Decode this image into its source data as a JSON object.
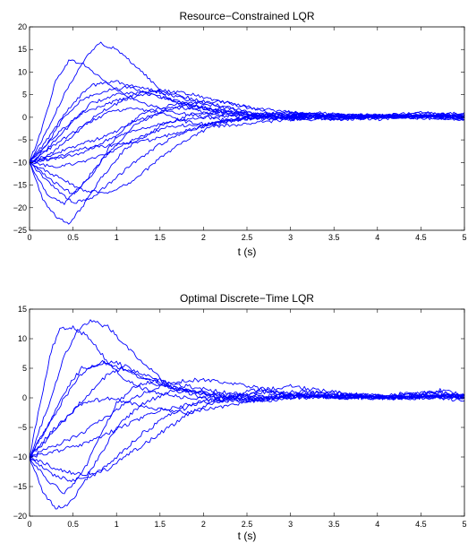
{
  "colors": {
    "series": "#0000ff",
    "axes": "#000000",
    "background": "#ffffff"
  },
  "chart_data": [
    {
      "type": "line",
      "title": "Resource−Constrained LQR",
      "xlabel": "t (s)",
      "ylabel": "",
      "xlim": [
        0,
        5
      ],
      "ylim": [
        -25,
        20
      ],
      "xticks": [
        0,
        0.5,
        1,
        1.5,
        2,
        2.5,
        3,
        3.5,
        4,
        4.5,
        5
      ],
      "xtick_labels": [
        "0",
        "0.5",
        "1",
        "1.5",
        "2",
        "2.5",
        "3",
        "3.5",
        "4",
        "4.5",
        "5"
      ],
      "yticks": [
        -25,
        -20,
        -15,
        -10,
        -5,
        0,
        5,
        10,
        15,
        20
      ],
      "ytick_labels": [
        "−25",
        "−20",
        "−15",
        "−10",
        "−5",
        "0",
        "5",
        "10",
        "15",
        "20"
      ],
      "grid": false,
      "series": [
        {
          "x": [
            0,
            0.15,
            0.3,
            0.45,
            0.6,
            0.8,
            1.0,
            1.3,
            1.7,
            2.2,
            2.8,
            3.5,
            4.2,
            5
          ],
          "y": [
            -10,
            -2,
            8,
            12.5,
            12,
            9,
            6,
            3,
            1,
            -0.5,
            0.5,
            0,
            0.5,
            0
          ]
        },
        {
          "x": [
            0,
            0.2,
            0.4,
            0.6,
            0.8,
            1.0,
            1.3,
            1.6,
            2.0,
            2.5,
            3.0,
            3.5,
            4.2,
            5
          ],
          "y": [
            -10,
            -3,
            5,
            12,
            16.5,
            15,
            10,
            4,
            1,
            0,
            -0.5,
            0.5,
            0,
            0.5
          ]
        },
        {
          "x": [
            0,
            0.2,
            0.45,
            0.7,
            1.0,
            1.4,
            1.8,
            2.2,
            2.7,
            3.2,
            3.8,
            4.5,
            5
          ],
          "y": [
            -10,
            -5,
            2,
            7,
            8,
            5,
            3,
            1,
            -0.5,
            0.5,
            0,
            1,
            0
          ]
        },
        {
          "x": [
            0,
            0.2,
            0.45,
            0.7,
            1.0,
            1.3,
            1.6,
            2.0,
            2.5,
            3.0,
            3.6,
            4.3,
            5
          ],
          "y": [
            -10,
            -7,
            -2,
            3,
            5,
            5.5,
            4,
            2,
            0.5,
            -0.5,
            0.5,
            0,
            -0.5
          ]
        },
        {
          "x": [
            0,
            0.25,
            0.5,
            0.8,
            1.1,
            1.5,
            1.9,
            2.3,
            2.8,
            3.4,
            4.0,
            4.6,
            5
          ],
          "y": [
            -10,
            -8,
            -4,
            1,
            4,
            6,
            4,
            2,
            0,
            0.5,
            -0.5,
            0.5,
            0
          ]
        },
        {
          "x": [
            0,
            0.25,
            0.5,
            0.75,
            1.0,
            1.3,
            1.7,
            2.1,
            2.6,
            3.2,
            3.8,
            4.5,
            5
          ],
          "y": [
            -10,
            -14,
            -17,
            -12,
            -4,
            1,
            3,
            2,
            0.5,
            -0.5,
            0,
            1,
            0.5
          ]
        },
        {
          "x": [
            0,
            0.2,
            0.4,
            0.6,
            0.9,
            1.2,
            1.6,
            2.0,
            2.5,
            3.0,
            3.6,
            4.2,
            5
          ],
          "y": [
            -10,
            -17,
            -19,
            -15,
            -8,
            -2,
            2,
            2,
            0.5,
            0,
            -0.5,
            0.5,
            0
          ]
        },
        {
          "x": [
            0,
            0.15,
            0.3,
            0.45,
            0.6,
            0.8,
            1.1,
            1.5,
            1.9,
            2.4,
            3.0,
            3.7,
            4.4,
            5
          ],
          "y": [
            -10,
            -18,
            -22,
            -23.5,
            -20,
            -14,
            -7,
            -2,
            1,
            1,
            0,
            -0.5,
            0.5,
            0
          ]
        },
        {
          "x": [
            0,
            0.25,
            0.5,
            0.7,
            0.9,
            1.2,
            1.5,
            1.8,
            2.2,
            2.7,
            3.3,
            4.0,
            4.6,
            5
          ],
          "y": [
            -10,
            -15,
            -19,
            -18,
            -15,
            -10,
            -6,
            -3,
            -1,
            0,
            1,
            0,
            0.5,
            -0.5
          ]
        },
        {
          "x": [
            0,
            0.3,
            0.6,
            0.9,
            1.2,
            1.5,
            1.8,
            2.1,
            2.5,
            3.0,
            3.6,
            4.2,
            5
          ],
          "y": [
            -10,
            -13,
            -16,
            -17,
            -14,
            -9,
            -5,
            -2,
            0,
            1,
            0,
            0.5,
            0
          ]
        },
        {
          "x": [
            0,
            0.3,
            0.6,
            0.9,
            1.2,
            1.6,
            2.0,
            2.4,
            2.8,
            3.3,
            3.9,
            4.5,
            5
          ],
          "y": [
            -10,
            -11,
            -10,
            -8,
            -5,
            -2,
            -1.5,
            -0.5,
            0.5,
            0,
            0.5,
            0,
            0.5
          ]
        },
        {
          "x": [
            0,
            0.3,
            0.6,
            1.0,
            1.4,
            1.8,
            2.2,
            2.7,
            3.2,
            3.7,
            4.3,
            5
          ],
          "y": [
            -10,
            -9,
            -7,
            -6,
            -5,
            -3,
            -1,
            0,
            0.5,
            0,
            0,
            -0.5
          ]
        },
        {
          "x": [
            0,
            0.3,
            0.6,
            0.9,
            1.2,
            1.5,
            1.8,
            2.2,
            2.7,
            3.3,
            3.9,
            4.5,
            5
          ],
          "y": [
            -10,
            -6,
            -2,
            1,
            2,
            1,
            -1,
            -2,
            -1,
            0,
            0.5,
            0,
            0
          ]
        },
        {
          "x": [
            0,
            0.2,
            0.4,
            0.6,
            0.9,
            1.2,
            1.6,
            2.0,
            2.5,
            3.0,
            3.6,
            4.2,
            5
          ],
          "y": [
            -10,
            -6,
            0,
            4,
            6,
            7,
            5,
            3,
            1,
            0,
            0.5,
            0,
            0.5
          ]
        },
        {
          "x": [
            0,
            0.3,
            0.6,
            0.9,
            1.2,
            1.5,
            1.9,
            2.3,
            2.8,
            3.4,
            4.0,
            4.6,
            5
          ],
          "y": [
            -10,
            -4,
            1,
            3,
            5,
            6,
            5,
            3,
            1,
            0,
            0,
            0.5,
            0
          ]
        },
        {
          "x": [
            0,
            0.3,
            0.6,
            0.9,
            1.2,
            1.5,
            1.8,
            2.2,
            2.6,
            3.1,
            3.7,
            4.3,
            5
          ],
          "y": [
            -10,
            -8,
            -6,
            -4,
            -1,
            1,
            3,
            3.5,
            2,
            1,
            0,
            0.5,
            0
          ]
        },
        {
          "x": [
            0,
            0.3,
            0.6,
            0.9,
            1.2,
            1.6,
            2.0,
            2.4,
            2.9,
            3.5,
            4.1,
            4.7,
            5
          ],
          "y": [
            -10,
            -9,
            -8,
            -5,
            -3,
            -1,
            0,
            0.5,
            1,
            0.5,
            0,
            0.5,
            1
          ]
        }
      ]
    },
    {
      "type": "line",
      "title": "Optimal Discrete−Time LQR",
      "xlabel": "t (s)",
      "ylabel": "",
      "xlim": [
        0,
        5
      ],
      "ylim": [
        -20,
        15
      ],
      "xticks": [
        0,
        0.5,
        1,
        1.5,
        2,
        2.5,
        3,
        3.5,
        4,
        4.5,
        5
      ],
      "xtick_labels": [
        "0",
        "0.5",
        "1",
        "1.5",
        "2",
        "2.5",
        "3",
        "3.5",
        "4",
        "4.5",
        "5"
      ],
      "yticks": [
        -20,
        -15,
        -10,
        -5,
        0,
        5,
        10,
        15
      ],
      "ytick_labels": [
        "−20",
        "−15",
        "−10",
        "−5",
        "0",
        "5",
        "10",
        "15"
      ],
      "grid": false,
      "series": [
        {
          "x": [
            0,
            0.12,
            0.25,
            0.35,
            0.5,
            0.7,
            0.9,
            1.1,
            1.4,
            1.8,
            2.2,
            2.8,
            3.5,
            4.2,
            5
          ],
          "y": [
            -10,
            -1,
            8,
            11.5,
            12,
            10,
            6,
            3,
            1,
            0,
            -0.5,
            0,
            0.5,
            0,
            0.5
          ]
        },
        {
          "x": [
            0,
            0.2,
            0.4,
            0.55,
            0.7,
            0.9,
            1.1,
            1.3,
            1.6,
            2.0,
            2.5,
            3.0,
            3.6,
            4.2,
            5
          ],
          "y": [
            -10,
            -2,
            7,
            11.5,
            13,
            12,
            9,
            6,
            2,
            0,
            -0.5,
            0.5,
            0,
            0.5,
            0
          ]
        },
        {
          "x": [
            0,
            0.2,
            0.4,
            0.6,
            0.8,
            1.0,
            1.3,
            1.6,
            2.0,
            2.5,
            3.0,
            3.5,
            4.1,
            4.7,
            5
          ],
          "y": [
            -10,
            -5,
            0,
            4,
            6,
            6,
            4,
            2,
            0.5,
            -0.5,
            0.5,
            0,
            0,
            1,
            0
          ]
        },
        {
          "x": [
            0,
            0.2,
            0.45,
            0.7,
            0.9,
            1.1,
            1.4,
            1.7,
            2.1,
            2.6,
            3.1,
            3.7,
            4.3,
            5
          ],
          "y": [
            -10,
            -7,
            -3,
            1,
            4,
            5,
            3,
            1.5,
            0.5,
            -0.5,
            0.5,
            0,
            0,
            0.5
          ]
        },
        {
          "x": [
            0,
            0.2,
            0.4,
            0.6,
            0.8,
            1.0,
            1.2,
            1.5,
            1.8,
            2.2,
            2.7,
            3.2,
            3.8,
            4.5,
            5
          ],
          "y": [
            -10,
            -14,
            -16,
            -13,
            -7,
            -1,
            2,
            3,
            2,
            1,
            0,
            0.5,
            0,
            0.5,
            -0.5
          ]
        },
        {
          "x": [
            0,
            0.15,
            0.3,
            0.45,
            0.6,
            0.8,
            1.0,
            1.3,
            1.6,
            2.0,
            2.5,
            3.0,
            3.6,
            4.2,
            5
          ],
          "y": [
            -10,
            -16,
            -18.5,
            -18,
            -15,
            -10,
            -5,
            -1,
            1,
            1,
            0,
            0,
            0.5,
            0,
            0
          ]
        },
        {
          "x": [
            0,
            0.25,
            0.5,
            0.75,
            1.0,
            1.3,
            1.6,
            1.9,
            2.2,
            2.6,
            3.1,
            3.6,
            4.2,
            4.8,
            5
          ],
          "y": [
            -10,
            -13,
            -14,
            -13,
            -10,
            -6,
            -3,
            -1,
            0,
            1,
            0.5,
            0,
            0,
            1.5,
            0
          ]
        },
        {
          "x": [
            0,
            0.3,
            0.6,
            0.9,
            1.2,
            1.5,
            1.8,
            2.1,
            2.5,
            3.0,
            3.5,
            4.1,
            4.7,
            5
          ],
          "y": [
            -10,
            -12,
            -13,
            -12,
            -9,
            -6,
            -3,
            -1,
            1,
            2,
            1,
            0,
            0.5,
            0
          ]
        },
        {
          "x": [
            0,
            0.3,
            0.6,
            0.9,
            1.2,
            1.5,
            1.9,
            2.3,
            2.7,
            3.2,
            3.8,
            4.4,
            5
          ],
          "y": [
            -10,
            -9,
            -8,
            -6,
            -4,
            -2,
            -1,
            0,
            1,
            1,
            0.5,
            0,
            0.5
          ]
        },
        {
          "x": [
            0,
            0.3,
            0.6,
            0.9,
            1.2,
            1.5,
            1.8,
            2.2,
            2.6,
            3.1,
            3.7,
            4.3,
            5
          ],
          "y": [
            -10,
            -5,
            -1,
            0,
            -1,
            -2,
            -2.5,
            -1.5,
            -0.5,
            0,
            0.5,
            0,
            0.5
          ]
        },
        {
          "x": [
            0,
            0.2,
            0.4,
            0.6,
            0.9,
            1.2,
            1.5,
            1.9,
            2.3,
            2.8,
            3.3,
            3.9,
            4.5,
            5
          ],
          "y": [
            -10,
            -5,
            1,
            5,
            6,
            4,
            2,
            1,
            0,
            0.5,
            1,
            0,
            0,
            0.5
          ]
        },
        {
          "x": [
            0,
            0.3,
            0.6,
            0.9,
            1.2,
            1.5,
            1.8,
            2.1,
            2.5,
            3.0,
            3.5,
            4.1,
            4.7,
            5
          ],
          "y": [
            -10,
            -8,
            -6,
            -3,
            0,
            2,
            3,
            3,
            2,
            0.5,
            0,
            0.5,
            1,
            0
          ]
        }
      ]
    }
  ]
}
